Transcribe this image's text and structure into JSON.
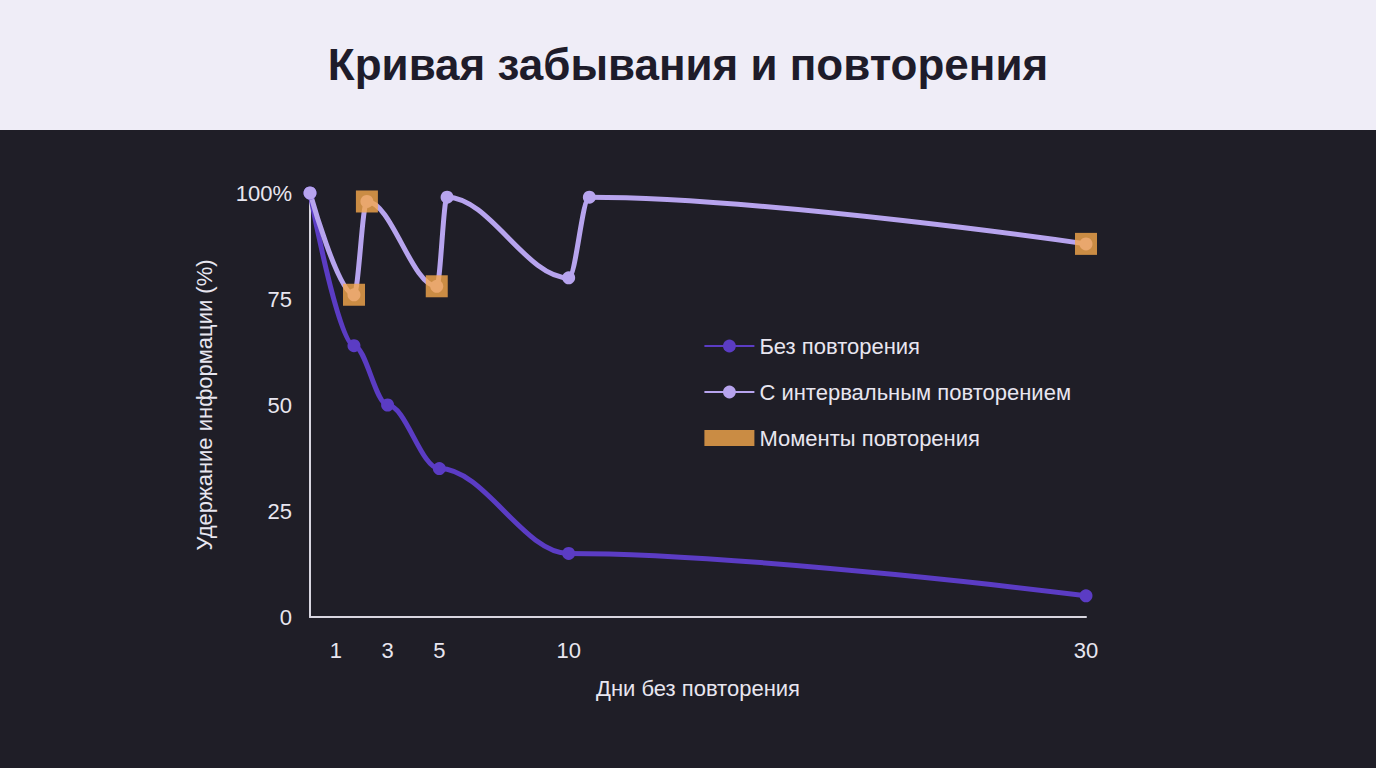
{
  "chart_data": {
    "type": "line",
    "title": "Кривая забывания и повторения",
    "x_label": "Дни без повторения",
    "y_label": "Удержание информации (%)",
    "xlim": [
      0,
      30
    ],
    "xticks": [
      1,
      3,
      5,
      10,
      30
    ],
    "ylim": [
      0,
      100
    ],
    "yticks": [
      0,
      25,
      50,
      75,
      {
        "value": 100,
        "label": "100%"
      }
    ],
    "grid": false,
    "legend": "right",
    "series": [
      {
        "name": "Без повторения",
        "type": "line",
        "color": "#5b3cc4",
        "marker": "circle",
        "line_style": "solid",
        "x": [
          0,
          1.7,
          3,
          5,
          10,
          30
        ],
        "values": [
          100,
          64,
          50,
          35,
          15,
          5
        ]
      },
      {
        "name": "С интервальным повторением",
        "type": "line",
        "color": "#b7a4ee",
        "marker": "circle",
        "line_style": "solid",
        "x": [
          0,
          1.7,
          2.2,
          4.9,
          5.3,
          10,
          10.8,
          30
        ],
        "values": [
          100,
          76,
          98,
          78,
          99,
          80,
          99,
          88
        ]
      },
      {
        "name": "Моменты повторения",
        "type": "scatter",
        "color": "#f5a84c",
        "marker": "star",
        "x": [
          1.7,
          2.2,
          4.9,
          30
        ],
        "values": [
          76,
          98,
          78,
          88
        ]
      }
    ]
  }
}
